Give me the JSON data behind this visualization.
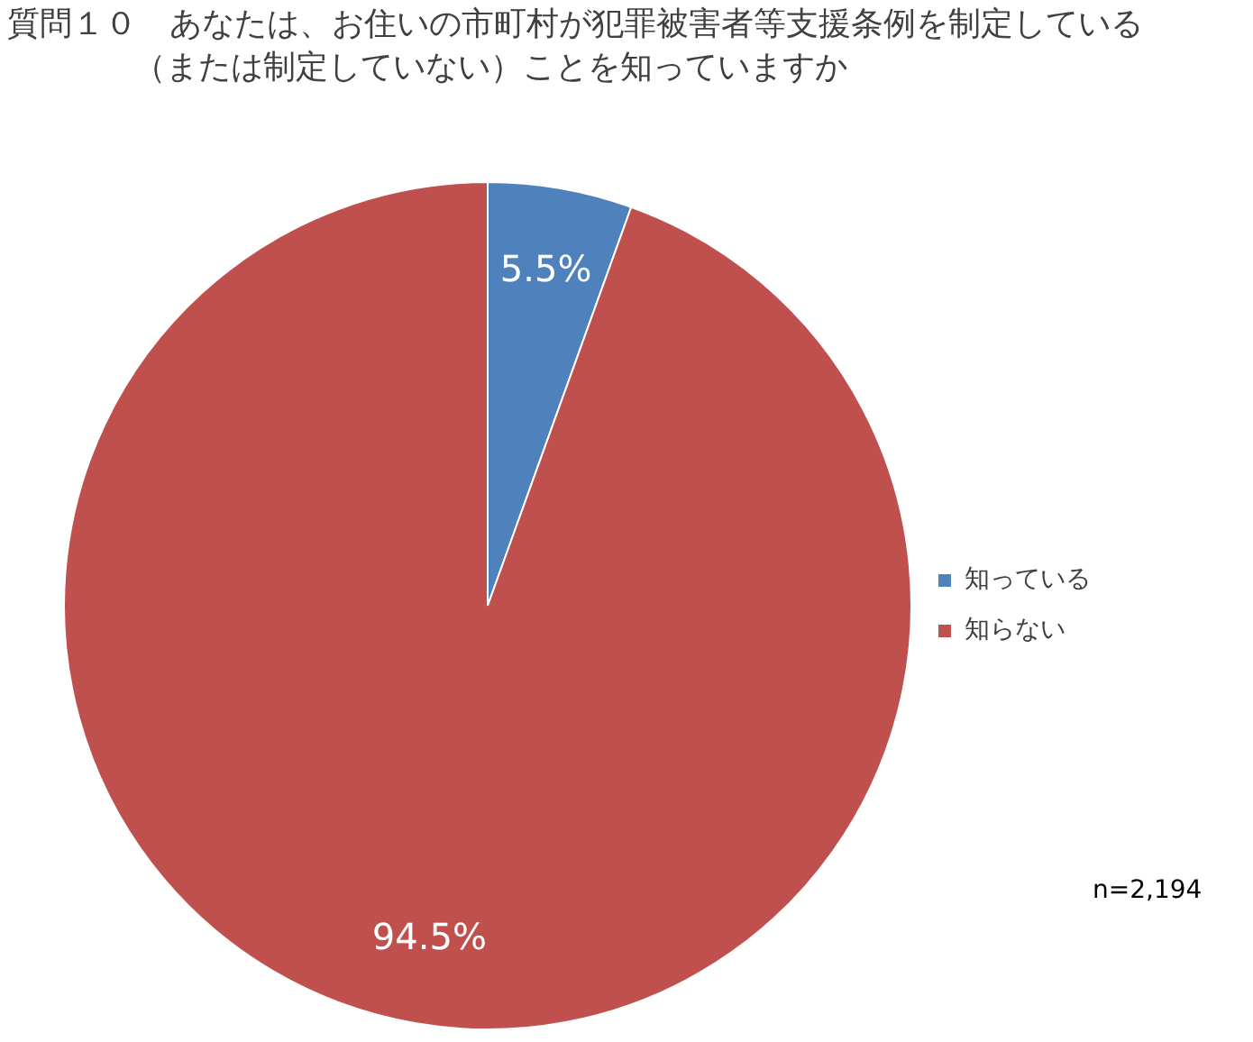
{
  "chart_data": {
    "type": "pie",
    "title": "質問１０　あなたは、お住いの市町村が犯罪被害者等支援条例を制定している（または制定していない）ことを知っていますか",
    "categories": [
      "知っている",
      "知らない"
    ],
    "values": [
      5.5,
      94.5
    ],
    "colors": [
      "#4f81bd",
      "#c0504d"
    ],
    "value_labels": [
      "5.5%",
      "94.5%"
    ],
    "legend": "right",
    "annotations": [
      "n=2,194"
    ]
  }
}
